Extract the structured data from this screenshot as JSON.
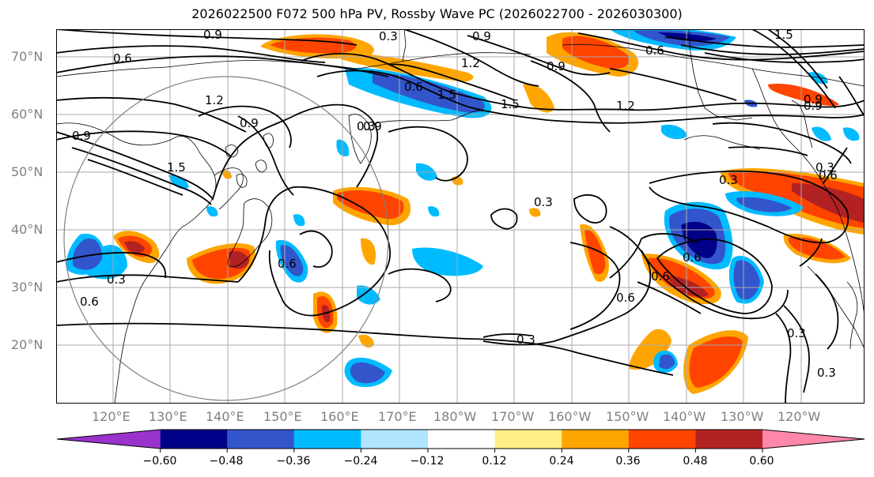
{
  "title": "2026022500 F072 500 hPa PV, Rossby Wave PC (2026022700 - 2026030300)",
  "lat_labels": [
    "70°N",
    "60°N",
    "50°N",
    "40°N",
    "30°N",
    "20°N"
  ],
  "lon_labels": [
    "120°E",
    "130°E",
    "140°E",
    "150°E",
    "160°E",
    "170°E",
    "180°W",
    "170°W",
    "160°W",
    "150°W",
    "140°W",
    "130°W",
    "120°W"
  ],
  "contour_labels": [
    "0.9",
    "0.3",
    "0.9",
    "0.6",
    "0.6",
    "1.2",
    "0.9",
    "0.6",
    "1.5",
    "1.2",
    "0.9",
    "1.5",
    "0.9",
    "1.5",
    "1.2",
    "0.9",
    "0.9",
    "1.5",
    "0.3",
    "0.3",
    "0.3",
    "0.6",
    "0.3",
    "0.6",
    "0.6",
    "0.6",
    "0.9",
    "0.6",
    "0.3",
    "0.3",
    "0.3",
    "0.3",
    "0.6"
  ],
  "colorbar": {
    "ticks": [
      "−0.60",
      "−0.48",
      "−0.36",
      "−0.24",
      "−0.12",
      "0.12",
      "0.24",
      "0.36",
      "0.48",
      "0.60"
    ],
    "colors": [
      "#9933cc",
      "#000088",
      "#3355cc",
      "#00bbff",
      "#b0e4ff",
      "#ffffff",
      "#ffee88",
      "#ffa500",
      "#ff4400",
      "#b22222",
      "#ff88aa"
    ]
  },
  "colors": {
    "coast": "#000000",
    "contour": "#000000",
    "grid": "#aaaaaa",
    "circle": "#808080"
  }
}
